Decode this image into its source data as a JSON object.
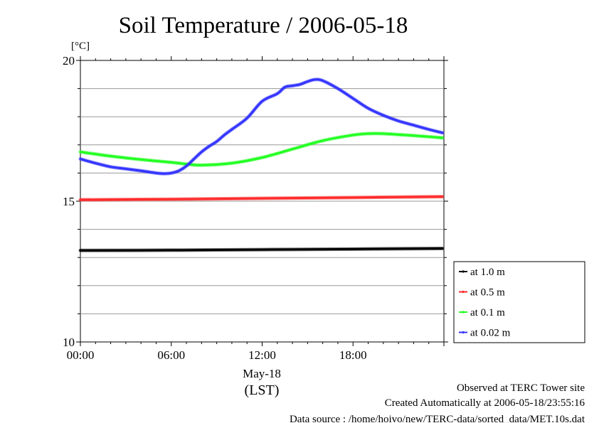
{
  "chart_data": {
    "type": "line",
    "title": "Soil Temperature / 2006-05-18",
    "ylabel": "[°C]",
    "xlabel_date": "May-18",
    "xlabel_unit": "(LST)",
    "ylim": [
      10,
      20
    ],
    "xlim": [
      0,
      24
    ],
    "grid": true,
    "legend_position": "right",
    "y_ticks": [
      "10",
      "15",
      "20"
    ],
    "x_ticks": [
      {
        "x": 0,
        "label": "00:00"
      },
      {
        "x": 6,
        "label": "06:00"
      },
      {
        "x": 12,
        "label": "12:00"
      },
      {
        "x": 18,
        "label": "18:00"
      }
    ],
    "series": [
      {
        "name": "at 1.0 m",
        "color": "#000000",
        "x": [
          0,
          6,
          12,
          18,
          23.9
        ],
        "values": [
          13.25,
          13.26,
          13.28,
          13.3,
          13.32
        ]
      },
      {
        "name": "at 0.5 m",
        "color": "#ff2a2a",
        "x": [
          0,
          6,
          12,
          18,
          23.9
        ],
        "values": [
          15.05,
          15.07,
          15.1,
          15.13,
          15.16
        ]
      },
      {
        "name": "at 0.1 m",
        "color": "#22ff22",
        "x": [
          0,
          2,
          4,
          6,
          7,
          8,
          10,
          12,
          14,
          16,
          18,
          19,
          20,
          22,
          23.9
        ],
        "values": [
          16.75,
          16.6,
          16.48,
          16.38,
          16.32,
          16.28,
          16.35,
          16.55,
          16.85,
          17.15,
          17.35,
          17.4,
          17.4,
          17.33,
          17.25
        ]
      },
      {
        "name": "at 0.02 m",
        "color": "#3333ff",
        "x": [
          0,
          1,
          2,
          3,
          4,
          5,
          5.5,
          6,
          6.5,
          7,
          7.5,
          8,
          8.5,
          9,
          9.5,
          10,
          11,
          12,
          13,
          13.5,
          14,
          14.5,
          15,
          15.5,
          16,
          17,
          18,
          19,
          20,
          21,
          22,
          23,
          23.9
        ],
        "values": [
          16.5,
          16.35,
          16.22,
          16.15,
          16.08,
          16.0,
          15.98,
          16.0,
          16.08,
          16.25,
          16.5,
          16.75,
          16.95,
          17.12,
          17.35,
          17.55,
          17.95,
          18.55,
          18.82,
          19.05,
          19.1,
          19.15,
          19.25,
          19.32,
          19.28,
          19.0,
          18.65,
          18.3,
          18.05,
          17.85,
          17.7,
          17.55,
          17.43
        ]
      }
    ]
  },
  "footer": {
    "line1": "Observed at TERC Tower site",
    "line2": "Created Automatically at 2006-05-18/23:55:16",
    "line3": "Data source : /home/hoivo/new/TERC-data/sorted_data/MET.10s.dat"
  }
}
